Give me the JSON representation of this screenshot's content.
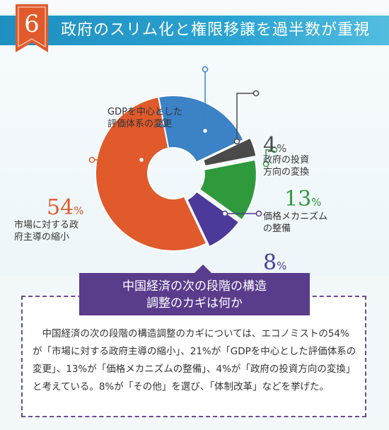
{
  "header": {
    "number": "6",
    "title": "政府のスリム化と権限移譲を過半数が重視"
  },
  "chart_data": {
    "type": "pie",
    "slices": [
      {
        "label": "GDPを中心とした評価体系の変更",
        "label_lines": [
          "GDPを中心とした",
          "評価体系の変更"
        ],
        "value": 21,
        "color": "#3b82c6"
      },
      {
        "label": "政府の投資方向の変換",
        "label_lines": [
          "政府の投資",
          "方向の変換"
        ],
        "value": 4,
        "color": "#4a4a4a"
      },
      {
        "label": "価格メカニズムの整備",
        "label_lines": [
          "価格メカニズム",
          "の整備"
        ],
        "value": 13,
        "color": "#2e9a3c"
      },
      {
        "label": "その他",
        "label_lines": [
          "その他"
        ],
        "value": 8,
        "color": "#4b3a9a"
      },
      {
        "label": "市場に対する政府主導の縮小",
        "label_lines": [
          "市場に対する政",
          "府主導の縮小"
        ],
        "value": 54,
        "color": "#e05a2b"
      }
    ],
    "percent_sign": "%"
  },
  "banner": {
    "line1": "中国経済の次の段階の構造",
    "line2": "調整のカギは何か"
  },
  "body": {
    "text": "　中国経済の次の段階の構造調整のカギについては、エコノミストの54%が「市場に対する政府主導の縮小」、21%が「GDPを中心とした評価体系の変更」、13%が「価格メカニズムの整備」、4%が「政府の投資方向の変換」と考えている。8%が「その他」を選び、「体制改革」などを挙げた。"
  },
  "colors": {
    "header": "#2aa3d2",
    "badge": "#e05a2b",
    "banner": "#5a3c8c"
  }
}
